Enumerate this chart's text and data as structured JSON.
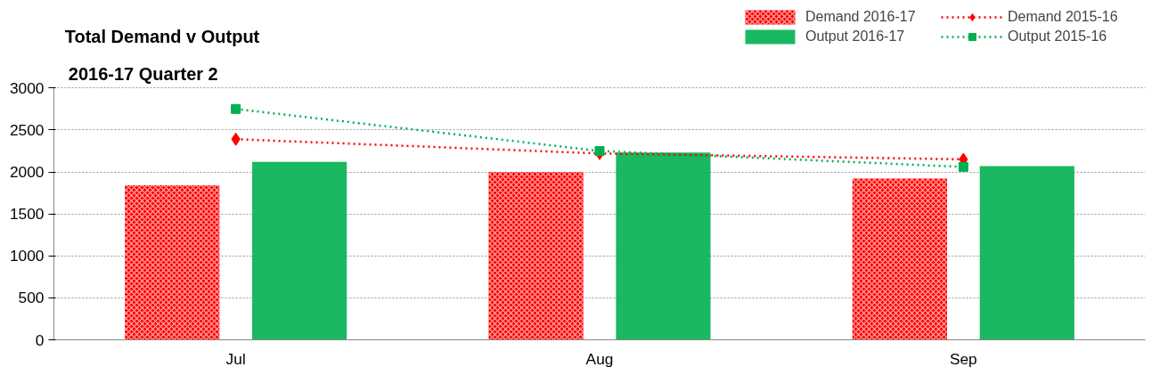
{
  "chart_data": {
    "type": "bar",
    "title": "Total Demand v Output",
    "subtitle": "2016-17  Quarter 2",
    "categories": [
      "Jul",
      "Aug",
      "Sep"
    ],
    "series": [
      {
        "name": "Demand 2016-17",
        "color": "#ff0000",
        "values": [
          1840,
          2000,
          1920
        ]
      },
      {
        "name": "Output 2016-17",
        "color": "#00b050",
        "values": [
          2120,
          2230,
          2070
        ]
      },
      {
        "name": "Demand 2015-16",
        "type": "line",
        "color": "#ff0000",
        "marker": "diamond",
        "line_style": "dotted",
        "values": [
          2390,
          2220,
          2150
        ]
      },
      {
        "name": "Output 2015-16",
        "type": "line",
        "color": "#00b050",
        "marker": "square",
        "line_style": "dotted",
        "values": [
          2750,
          2250,
          2060
        ]
      }
    ],
    "ylim": [
      0,
      3000
    ],
    "yticks": [
      0,
      500,
      1000,
      1500,
      2000,
      2500,
      3000
    ],
    "grid": "y",
    "legend": "top right"
  }
}
